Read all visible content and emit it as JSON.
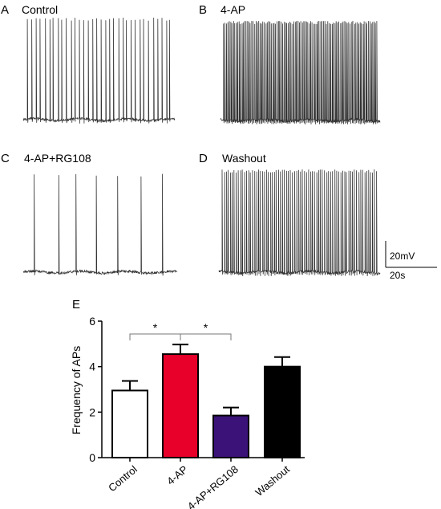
{
  "panels": [
    {
      "letter": "A",
      "title": "Control",
      "n_spikes": 34,
      "seed": 11
    },
    {
      "letter": "B",
      "title": "4-AP",
      "n_spikes": 110,
      "seed": 23
    },
    {
      "letter": "C",
      "title": "4-AP+RG108",
      "n_spikes": 7,
      "seed": 37
    },
    {
      "letter": "D",
      "title": "Washout",
      "n_spikes": 78,
      "seed": 41
    }
  ],
  "scalebar": {
    "voltage": "20mV",
    "time": "20s"
  },
  "chart_data": {
    "type": "bar",
    "panel_letter": "E",
    "categories": [
      "Control",
      "4-AP",
      "4-AP+RG108",
      "Washout"
    ],
    "values": [
      2.95,
      4.55,
      1.85,
      4.0
    ],
    "errors": [
      0.42,
      0.42,
      0.35,
      0.42
    ],
    "colors": [
      "#ffffff",
      "#e8002a",
      "#3a1278",
      "#000000"
    ],
    "ylabel": "Frequency of APs",
    "xlabel": "",
    "ylim": [
      0,
      6
    ],
    "yticks": [
      0,
      2,
      4,
      6
    ],
    "significance": [
      {
        "from": 0,
        "to": 1,
        "label": "*"
      },
      {
        "from": 1,
        "to": 2,
        "label": "*"
      }
    ],
    "grid": false
  }
}
